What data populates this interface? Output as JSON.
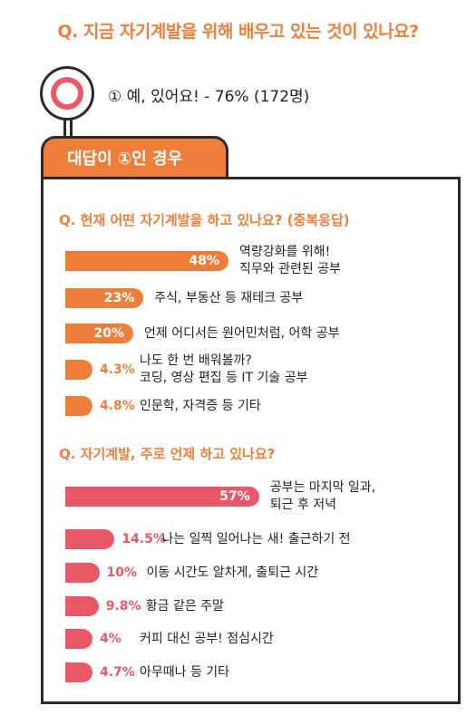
{
  "header": {
    "question": "Q. 지금 자기계발을 위해 배우고 있는 것이 있나요?",
    "answer": "① 예, 있어요! - 76% (172명)"
  },
  "tab_label": "대답이 ①인 경우",
  "colors": {
    "orange": "#ee7f3a",
    "red": "#e85867",
    "border": "#2a2a2a"
  },
  "chart_data": [
    {
      "type": "bar",
      "orientation": "horizontal",
      "title": "Q. 현재 어떤 자기계발을 하고 있나요? (중복응답)",
      "categories": [
        [
          "역량강화를 위해!",
          "직무와 관련된 공부"
        ],
        [
          "주식, 부동산 등 재테크 공부"
        ],
        [
          "언제 어디서든 원어민처럼, 어학 공부"
        ],
        [
          "나도 한 번 배워볼까?",
          "코딩, 영상 편집 등 IT 기술 공부"
        ],
        [
          "인문학, 자격증 등 기타"
        ]
      ],
      "values": [
        48,
        23,
        20,
        4.3,
        4.8
      ],
      "value_labels": [
        "48%",
        "23%",
        "20%",
        "4.3%",
        "4.8%"
      ],
      "color": "#ee7f3a"
    },
    {
      "type": "bar",
      "orientation": "horizontal",
      "title": "Q. 자기계발, 주로 언제 하고 있나요?",
      "categories": [
        [
          "공부는 마지막 일과,",
          "퇴근 후 저녁"
        ],
        [
          "나는 일찍 일어나는 새! 출근하기 전"
        ],
        [
          "이동 시간도 알차게, 출퇴근 시간"
        ],
        [
          "황금 같은 주말"
        ],
        [
          "커피 대신 공부! 점심시간"
        ],
        [
          "아무때나 등 기타"
        ]
      ],
      "values": [
        57,
        14.5,
        10,
        9.8,
        4,
        4.7
      ],
      "value_labels": [
        "57%",
        "14.5%",
        "10%",
        "9.8%",
        "4%",
        "4.7%"
      ],
      "color": "#e85867"
    }
  ]
}
